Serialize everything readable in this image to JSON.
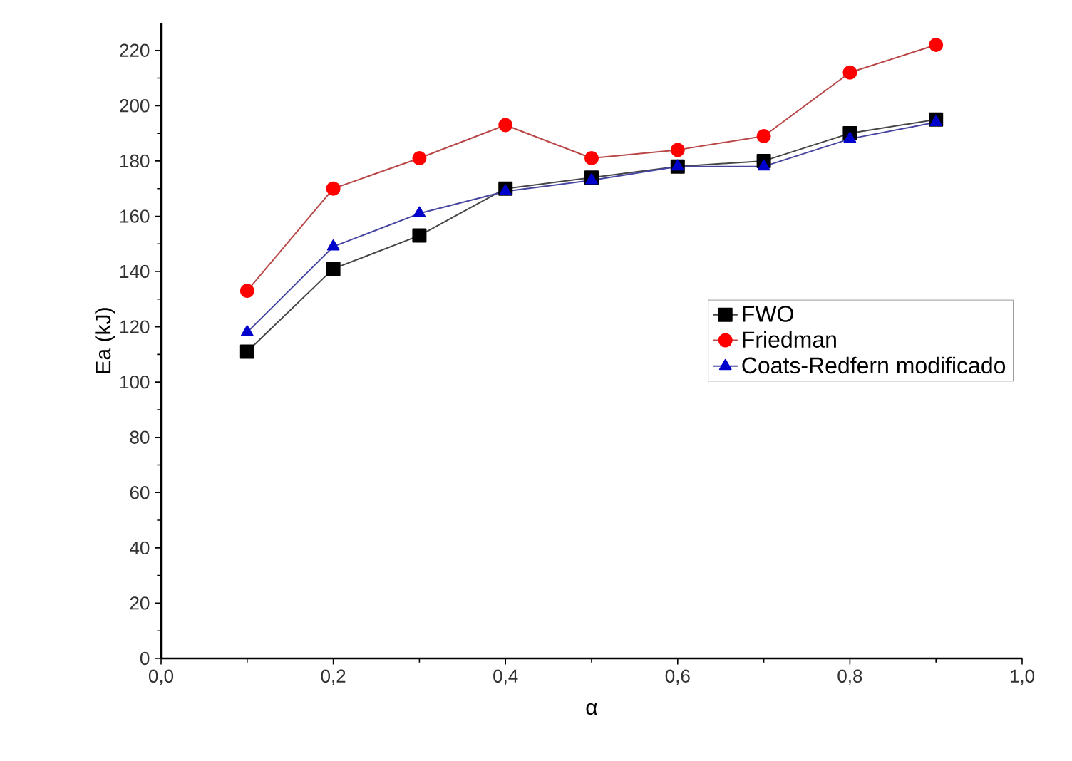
{
  "chart_data": {
    "type": "line",
    "xlabel": "α",
    "ylabel": "Ea (kJ)",
    "x": [
      0.1,
      0.2,
      0.3,
      0.4,
      0.5,
      0.6,
      0.7,
      0.8,
      0.9
    ],
    "series": [
      {
        "name": "FWO",
        "color": "#000000",
        "marker": "square",
        "values": [
          111,
          141,
          153,
          170,
          174,
          178,
          180,
          190,
          195
        ]
      },
      {
        "name": "Friedman",
        "color": "#ff0000",
        "marker": "circle",
        "values": [
          133,
          170,
          181,
          193,
          181,
          184,
          189,
          212,
          222
        ]
      },
      {
        "name": "Coats-Redfern modificado",
        "color": "#0000cc",
        "marker": "triangle",
        "values": [
          118,
          149,
          161,
          169,
          173,
          178,
          178,
          188,
          194
        ]
      }
    ],
    "xlim": [
      0,
      1
    ],
    "ylim": [
      0,
      230
    ],
    "xticks": [
      {
        "value": 0,
        "label": "0,0"
      },
      {
        "value": 0.2,
        "label": "0,2"
      },
      {
        "value": 0.4,
        "label": "0,4"
      },
      {
        "value": 0.6,
        "label": "0,6"
      },
      {
        "value": 0.8,
        "label": "0,8"
      },
      {
        "value": 1,
        "label": "1,0"
      }
    ],
    "yticks": [
      0,
      20,
      40,
      60,
      80,
      100,
      120,
      140,
      160,
      180,
      200,
      220
    ],
    "legend": "right",
    "grid": false,
    "line_style": "solid"
  }
}
